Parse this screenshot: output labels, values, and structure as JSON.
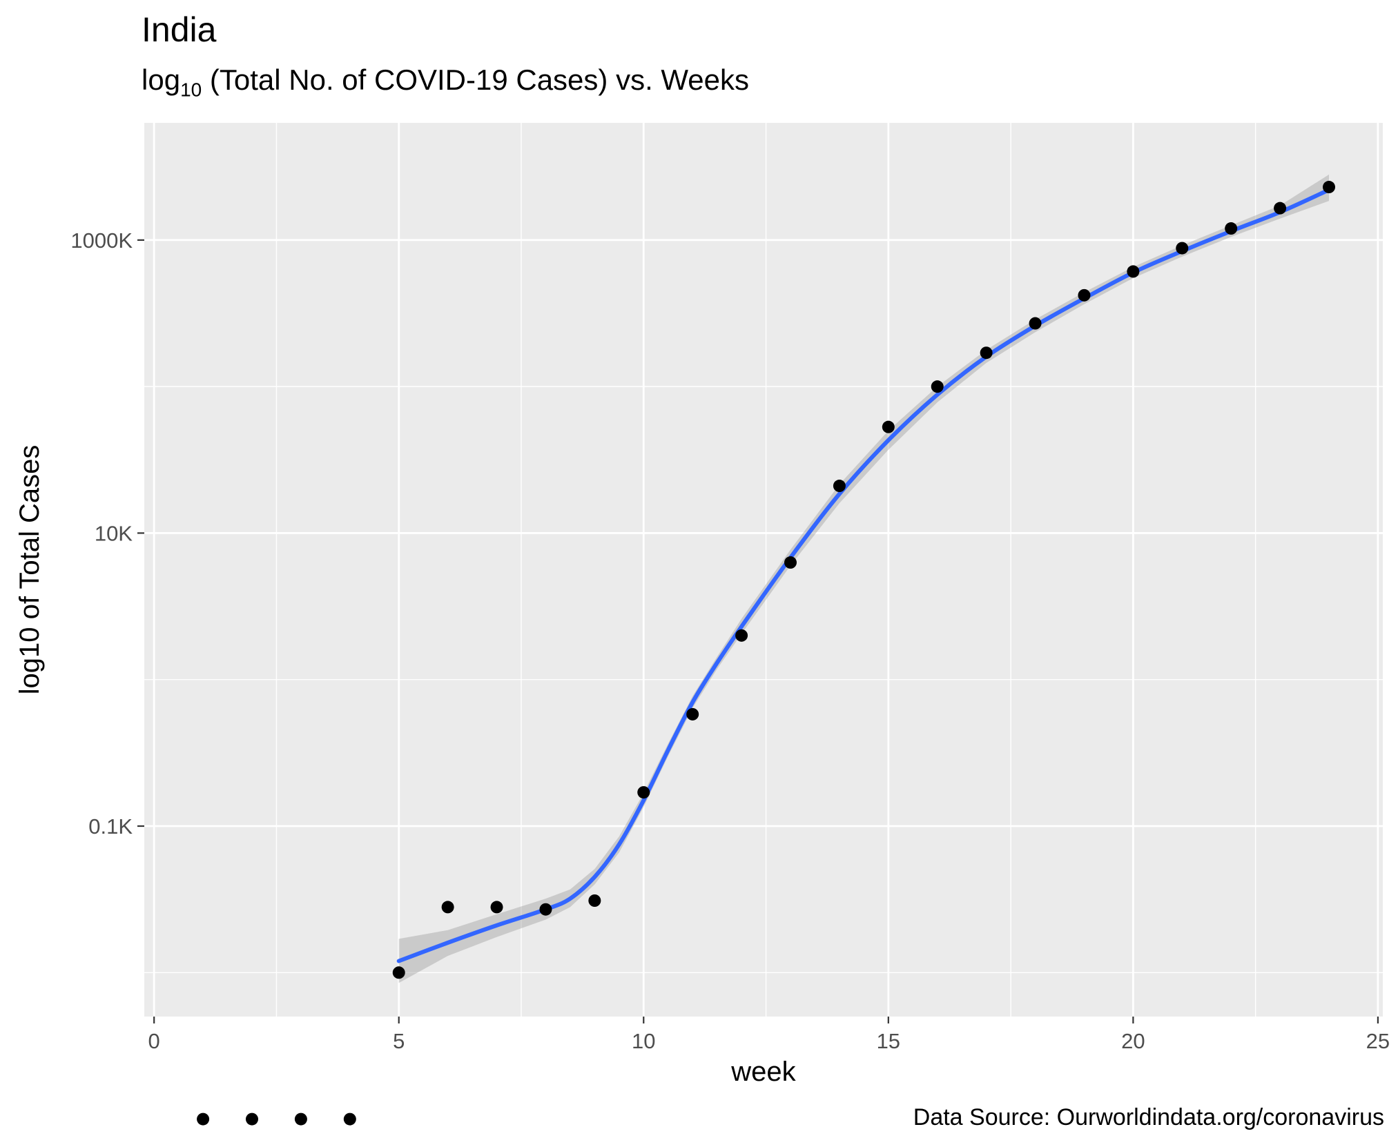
{
  "chart_data": {
    "type": "scatter",
    "title": "India",
    "subtitle": {
      "log_prefix": "log",
      "log_base": "10",
      "text": " (Total No. of COVID-19 Cases) vs. Weeks"
    },
    "caption": "Data Source: Ourworldindata.org/coronavirus",
    "xlabel": "week",
    "ylabel": "log10 of Total Cases",
    "x_ticks": [
      "0",
      "5",
      "10",
      "15",
      "20",
      "25"
    ],
    "y_ticks": [
      "0.1K",
      "10K",
      "1000K"
    ],
    "y_scale": "log10",
    "xlim": [
      -0.2,
      25.1
    ],
    "ylim_log10": [
      0.7,
      6.8
    ],
    "grid": true,
    "series": [
      {
        "kind": "points",
        "x": [
          1,
          2,
          3,
          4,
          5,
          6,
          7,
          8,
          9,
          10,
          11,
          12,
          13,
          14,
          15,
          16,
          17,
          18,
          19,
          20,
          21,
          22,
          23,
          24
        ],
        "y": [
          1,
          1,
          1,
          1,
          10,
          28,
          28,
          27,
          31,
          170,
          580,
          2000,
          6300,
          21000,
          53000,
          100000,
          170000,
          270000,
          420000,
          610000,
          880000,
          1200000,
          1650000,
          2300000
        ]
      },
      {
        "kind": "smooth",
        "color": "#3366FF",
        "x": [
          5,
          6,
          7,
          8,
          8.5,
          9,
          9.5,
          10,
          10.5,
          11,
          11.5,
          12,
          13,
          14,
          15,
          16,
          17,
          18,
          19,
          20,
          21,
          22,
          23,
          24
        ],
        "y": [
          12,
          16,
          21,
          27,
          32,
          45,
          75,
          150,
          330,
          700,
          1300,
          2300,
          6800,
          18500,
          43000,
          88000,
          160000,
          260000,
          400000,
          600000,
          840000,
          1150000,
          1550000,
          2200000
        ],
        "ci_lower": [
          8.5,
          13,
          17.5,
          23,
          28,
          40,
          66,
          135,
          300,
          640,
          1180,
          2050,
          6000,
          16000,
          37000,
          78000,
          145000,
          235000,
          365000,
          550000,
          770000,
          1050000,
          1400000,
          1850000
        ],
        "ci_upper": [
          17,
          19.5,
          25,
          32,
          37,
          51,
          85,
          168,
          365,
          770,
          1430,
          2600,
          7700,
          21500,
          50000,
          100000,
          178000,
          287000,
          440000,
          655000,
          920000,
          1260000,
          1720000,
          2800000
        ]
      }
    ]
  }
}
